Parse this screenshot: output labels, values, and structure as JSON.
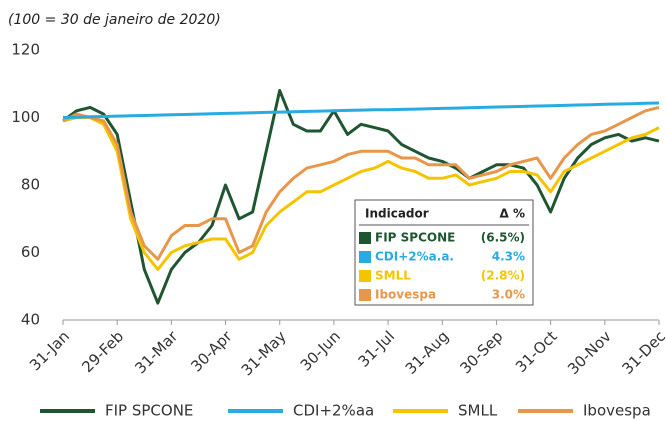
{
  "chart_data": {
    "type": "line",
    "subtitle": "(100 = 30 de janeiro de 2020)",
    "categories": [
      "31-Jan",
      null,
      null,
      null,
      "29-Feb",
      null,
      null,
      null,
      "31-Mar",
      null,
      null,
      null,
      "30-Apr",
      null,
      null,
      null,
      "31-May",
      null,
      null,
      null,
      "30-Jun",
      null,
      null,
      null,
      "31-Jul",
      null,
      null,
      null,
      "31-Aug",
      null,
      null,
      null,
      "30-Sep",
      null,
      null,
      null,
      "31-Oct",
      null,
      null,
      null,
      "30-Nov",
      null,
      null,
      null,
      "31-Dec"
    ],
    "series": [
      {
        "name": "FIP SPCONE",
        "color": "#1e5631",
        "values": [
          99,
          102,
          103,
          101,
          95,
          75,
          55,
          45,
          55,
          60,
          63,
          68,
          80,
          70,
          72,
          90,
          108,
          98,
          96,
          96,
          102,
          95,
          98,
          97,
          96,
          92,
          90,
          88,
          87,
          85,
          82,
          84,
          86,
          86,
          85,
          80,
          72,
          82,
          88,
          92,
          94,
          95,
          93,
          94,
          93
        ]
      },
      {
        "name": "CDI+2%aa",
        "color": "#29abe2",
        "values": [
          100,
          100.1,
          100.2,
          100.3,
          100.4,
          100.5,
          100.6,
          100.7,
          100.8,
          100.9,
          101,
          101.1,
          101.2,
          101.3,
          101.4,
          101.5,
          101.6,
          101.7,
          101.8,
          101.9,
          102,
          102.1,
          102.2,
          102.3,
          102.3,
          102.4,
          102.5,
          102.6,
          102.7,
          102.8,
          102.9,
          103,
          103.1,
          103.2,
          103.3,
          103.4,
          103.5,
          103.6,
          103.7,
          103.8,
          103.9,
          104,
          104.1,
          104.2,
          104.3
        ]
      },
      {
        "name": "SMLL",
        "color": "#f5c400",
        "values": [
          99,
          100,
          100,
          98,
          90,
          70,
          60,
          55,
          60,
          62,
          63,
          64,
          64,
          58,
          60,
          68,
          72,
          75,
          78,
          78,
          80,
          82,
          84,
          85,
          87,
          85,
          84,
          82,
          82,
          83,
          80,
          81,
          82,
          84,
          84,
          83,
          78,
          84,
          86,
          88,
          90,
          92,
          94,
          95,
          97
        ]
      },
      {
        "name": "Ibovespa",
        "color": "#e8964a",
        "values": [
          99,
          101,
          100,
          99,
          92,
          72,
          62,
          58,
          65,
          68,
          68,
          70,
          70,
          60,
          62,
          72,
          78,
          82,
          85,
          86,
          87,
          89,
          90,
          90,
          90,
          88,
          88,
          86,
          86,
          86,
          82,
          83,
          84,
          86,
          87,
          88,
          82,
          88,
          92,
          95,
          96,
          98,
          100,
          102,
          103
        ]
      }
    ],
    "ylim": [
      40,
      120
    ],
    "yticks": [
      40,
      60,
      80,
      100,
      120
    ],
    "table": {
      "header": [
        "Indicador",
        "Δ %"
      ],
      "rows": [
        [
          "FIP SPCONE",
          "(6.5%)"
        ],
        [
          "CDI+2%a.a.",
          "4.3%"
        ],
        [
          "SMLL",
          "(2.8%)"
        ],
        [
          "Ibovespa",
          "3.0%"
        ]
      ]
    }
  }
}
